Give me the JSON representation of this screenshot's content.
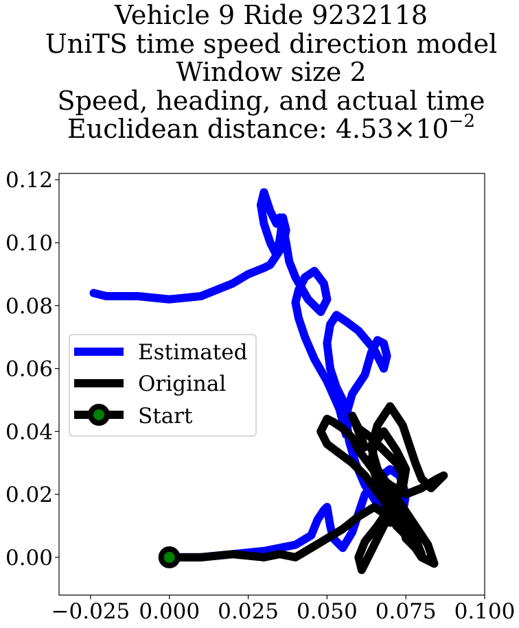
{
  "chart_data": {
    "type": "line",
    "title_lines": [
      "Vehicle 9 Ride 9232118",
      "UniTS time speed direction model",
      "Window size 2",
      "Speed, heading, and actual time"
    ],
    "title_metric": {
      "label": "Euclidean distance: ",
      "mantissa": "4.53",
      "times": "×",
      "base": "10",
      "exponent": "−2"
    },
    "xlim": [
      -0.035,
      0.1
    ],
    "ylim": [
      -0.012,
      0.122
    ],
    "x_ticks": [
      -0.025,
      0.0,
      0.025,
      0.05,
      0.075,
      0.1
    ],
    "x_tick_labels": [
      "−0.025",
      "0.000",
      "0.025",
      "0.050",
      "0.075",
      "0.100"
    ],
    "y_ticks": [
      0.0,
      0.02,
      0.04,
      0.06,
      0.08,
      0.1,
      0.12
    ],
    "y_tick_labels": [
      "0.00",
      "0.02",
      "0.04",
      "0.06",
      "0.08",
      "0.10",
      "0.12"
    ],
    "legend_position": "center-left",
    "series": [
      {
        "name": "Estimated",
        "color": "#0000ff",
        "x": [
          0.0,
          0.01,
          0.02,
          0.03,
          0.04,
          0.045,
          0.047,
          0.049,
          0.05,
          0.051,
          0.052,
          0.055,
          0.058,
          0.06,
          0.062,
          0.066,
          0.07,
          0.073,
          0.075,
          0.074,
          0.07,
          0.066,
          0.062,
          0.059,
          0.057,
          0.056,
          0.058,
          0.062,
          0.064,
          0.066,
          0.068,
          0.069,
          0.068,
          0.065,
          0.06,
          0.056,
          0.053,
          0.051,
          0.05,
          0.051,
          0.053,
          0.055,
          0.057,
          0.056,
          0.054,
          0.05,
          0.046,
          0.043,
          0.041,
          0.04,
          0.041,
          0.043,
          0.046,
          0.049,
          0.05,
          0.048,
          0.044,
          0.04,
          0.038,
          0.037,
          0.036,
          0.035,
          0.034,
          0.032,
          0.03,
          0.029,
          0.03,
          0.032,
          0.034,
          0.036,
          0.037,
          0.036,
          0.035,
          0.034,
          0.032,
          0.03,
          0.025,
          0.02,
          0.015,
          0.01,
          0.0,
          -0.01,
          -0.02,
          -0.024
        ],
        "y": [
          0.0,
          0.0,
          0.001,
          0.002,
          0.004,
          0.007,
          0.012,
          0.015,
          0.016,
          0.01,
          0.006,
          0.003,
          0.008,
          0.014,
          0.02,
          0.025,
          0.028,
          0.026,
          0.02,
          0.014,
          0.012,
          0.017,
          0.023,
          0.03,
          0.037,
          0.045,
          0.052,
          0.058,
          0.065,
          0.069,
          0.068,
          0.064,
          0.06,
          0.066,
          0.072,
          0.075,
          0.077,
          0.074,
          0.068,
          0.06,
          0.054,
          0.05,
          0.044,
          0.039,
          0.047,
          0.056,
          0.063,
          0.07,
          0.076,
          0.081,
          0.085,
          0.089,
          0.091,
          0.087,
          0.082,
          0.078,
          0.082,
          0.089,
          0.094,
          0.1,
          0.105,
          0.108,
          0.106,
          0.11,
          0.116,
          0.112,
          0.106,
          0.1,
          0.096,
          0.099,
          0.104,
          0.108,
          0.101,
          0.096,
          0.093,
          0.092,
          0.09,
          0.087,
          0.085,
          0.083,
          0.082,
          0.083,
          0.083,
          0.084
        ]
      },
      {
        "name": "Original",
        "color": "#000000",
        "x": [
          0.0,
          0.01,
          0.02,
          0.03,
          0.035,
          0.04,
          0.045,
          0.05,
          0.055,
          0.06,
          0.065,
          0.068,
          0.07,
          0.072,
          0.074,
          0.075,
          0.078,
          0.08,
          0.084,
          0.082,
          0.078,
          0.074,
          0.07,
          0.066,
          0.064,
          0.066,
          0.07,
          0.074,
          0.076,
          0.078,
          0.08,
          0.083,
          0.087,
          0.085,
          0.08,
          0.075,
          0.07,
          0.066,
          0.063,
          0.06,
          0.058,
          0.055,
          0.052,
          0.05,
          0.048,
          0.05,
          0.054,
          0.058,
          0.062,
          0.065,
          0.068,
          0.07,
          0.072,
          0.075,
          0.078,
          0.08,
          0.078,
          0.074,
          0.07,
          0.066,
          0.064,
          0.065,
          0.068,
          0.072,
          0.075,
          0.074,
          0.07,
          0.066,
          0.062,
          0.06,
          0.061,
          0.064,
          0.068,
          0.072,
          0.074,
          0.072,
          0.068,
          0.064,
          0.06,
          0.058,
          0.06,
          0.062
        ],
        "y": [
          0.0,
          0.0,
          0.001,
          0.0,
          0.001,
          0.0,
          0.003,
          0.006,
          0.009,
          0.013,
          0.016,
          0.014,
          0.011,
          0.012,
          0.01,
          0.006,
          0.003,
          0.0,
          -0.002,
          0.004,
          0.01,
          0.016,
          0.022,
          0.028,
          0.035,
          0.042,
          0.048,
          0.042,
          0.036,
          0.03,
          0.025,
          0.022,
          0.026,
          0.025,
          0.022,
          0.02,
          0.023,
          0.026,
          0.03,
          0.034,
          0.038,
          0.041,
          0.043,
          0.044,
          0.04,
          0.036,
          0.033,
          0.03,
          0.026,
          0.022,
          0.018,
          0.014,
          0.01,
          0.007,
          0.004,
          0.001,
          0.006,
          0.012,
          0.018,
          0.024,
          0.03,
          0.036,
          0.04,
          0.034,
          0.028,
          0.022,
          0.016,
          0.01,
          0.005,
          0.0,
          -0.004,
          0.002,
          0.01,
          0.018,
          0.026,
          0.03,
          0.034,
          0.038,
          0.041,
          0.045,
          0.04,
          0.035
        ]
      }
    ],
    "start_point": {
      "name": "Start",
      "x": 0.0,
      "y": 0.0,
      "edge_color": "#000000",
      "face_color": "#008000"
    }
  }
}
